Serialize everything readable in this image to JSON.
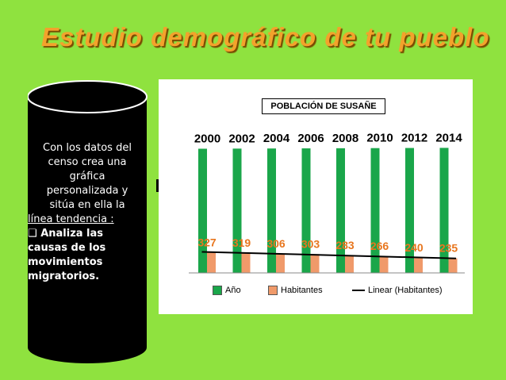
{
  "title": "Estudio demográfico de tu pueblo",
  "sidebar": {
    "lines": [
      "Con los datos del",
      "censo crea una",
      "gráfica",
      "personalizada y",
      "sitúa en ella la",
      "línea tendencia :",
      "Analiza las",
      "causas de los",
      "movimientos",
      "migratorios."
    ]
  },
  "colors": {
    "background": "#8fe23f",
    "title": "#f3a22c",
    "bar_year": "#1aa64a",
    "bar_pop": "#f09a6a",
    "pop_label": "#e8761e"
  },
  "chart_data": {
    "type": "bar",
    "title": "POBLACIÓN DE SUSAÑE",
    "categories": [
      "2000",
      "2002",
      "2004",
      "2006",
      "2008",
      "2010",
      "2012",
      "2014"
    ],
    "series": [
      {
        "name": "Año",
        "values": [
          2000,
          2002,
          2004,
          2006,
          2008,
          2010,
          2012,
          2014
        ]
      },
      {
        "name": "Habitantes",
        "values": [
          327,
          319,
          306,
          303,
          283,
          266,
          240,
          235
        ]
      }
    ],
    "trendline": {
      "name": "Linear (Habitantes)",
      "of": "Habitantes"
    },
    "ylim": [
      0,
      2300
    ],
    "legend": "bottom",
    "grid": false,
    "xlabel": "",
    "ylabel": ""
  }
}
